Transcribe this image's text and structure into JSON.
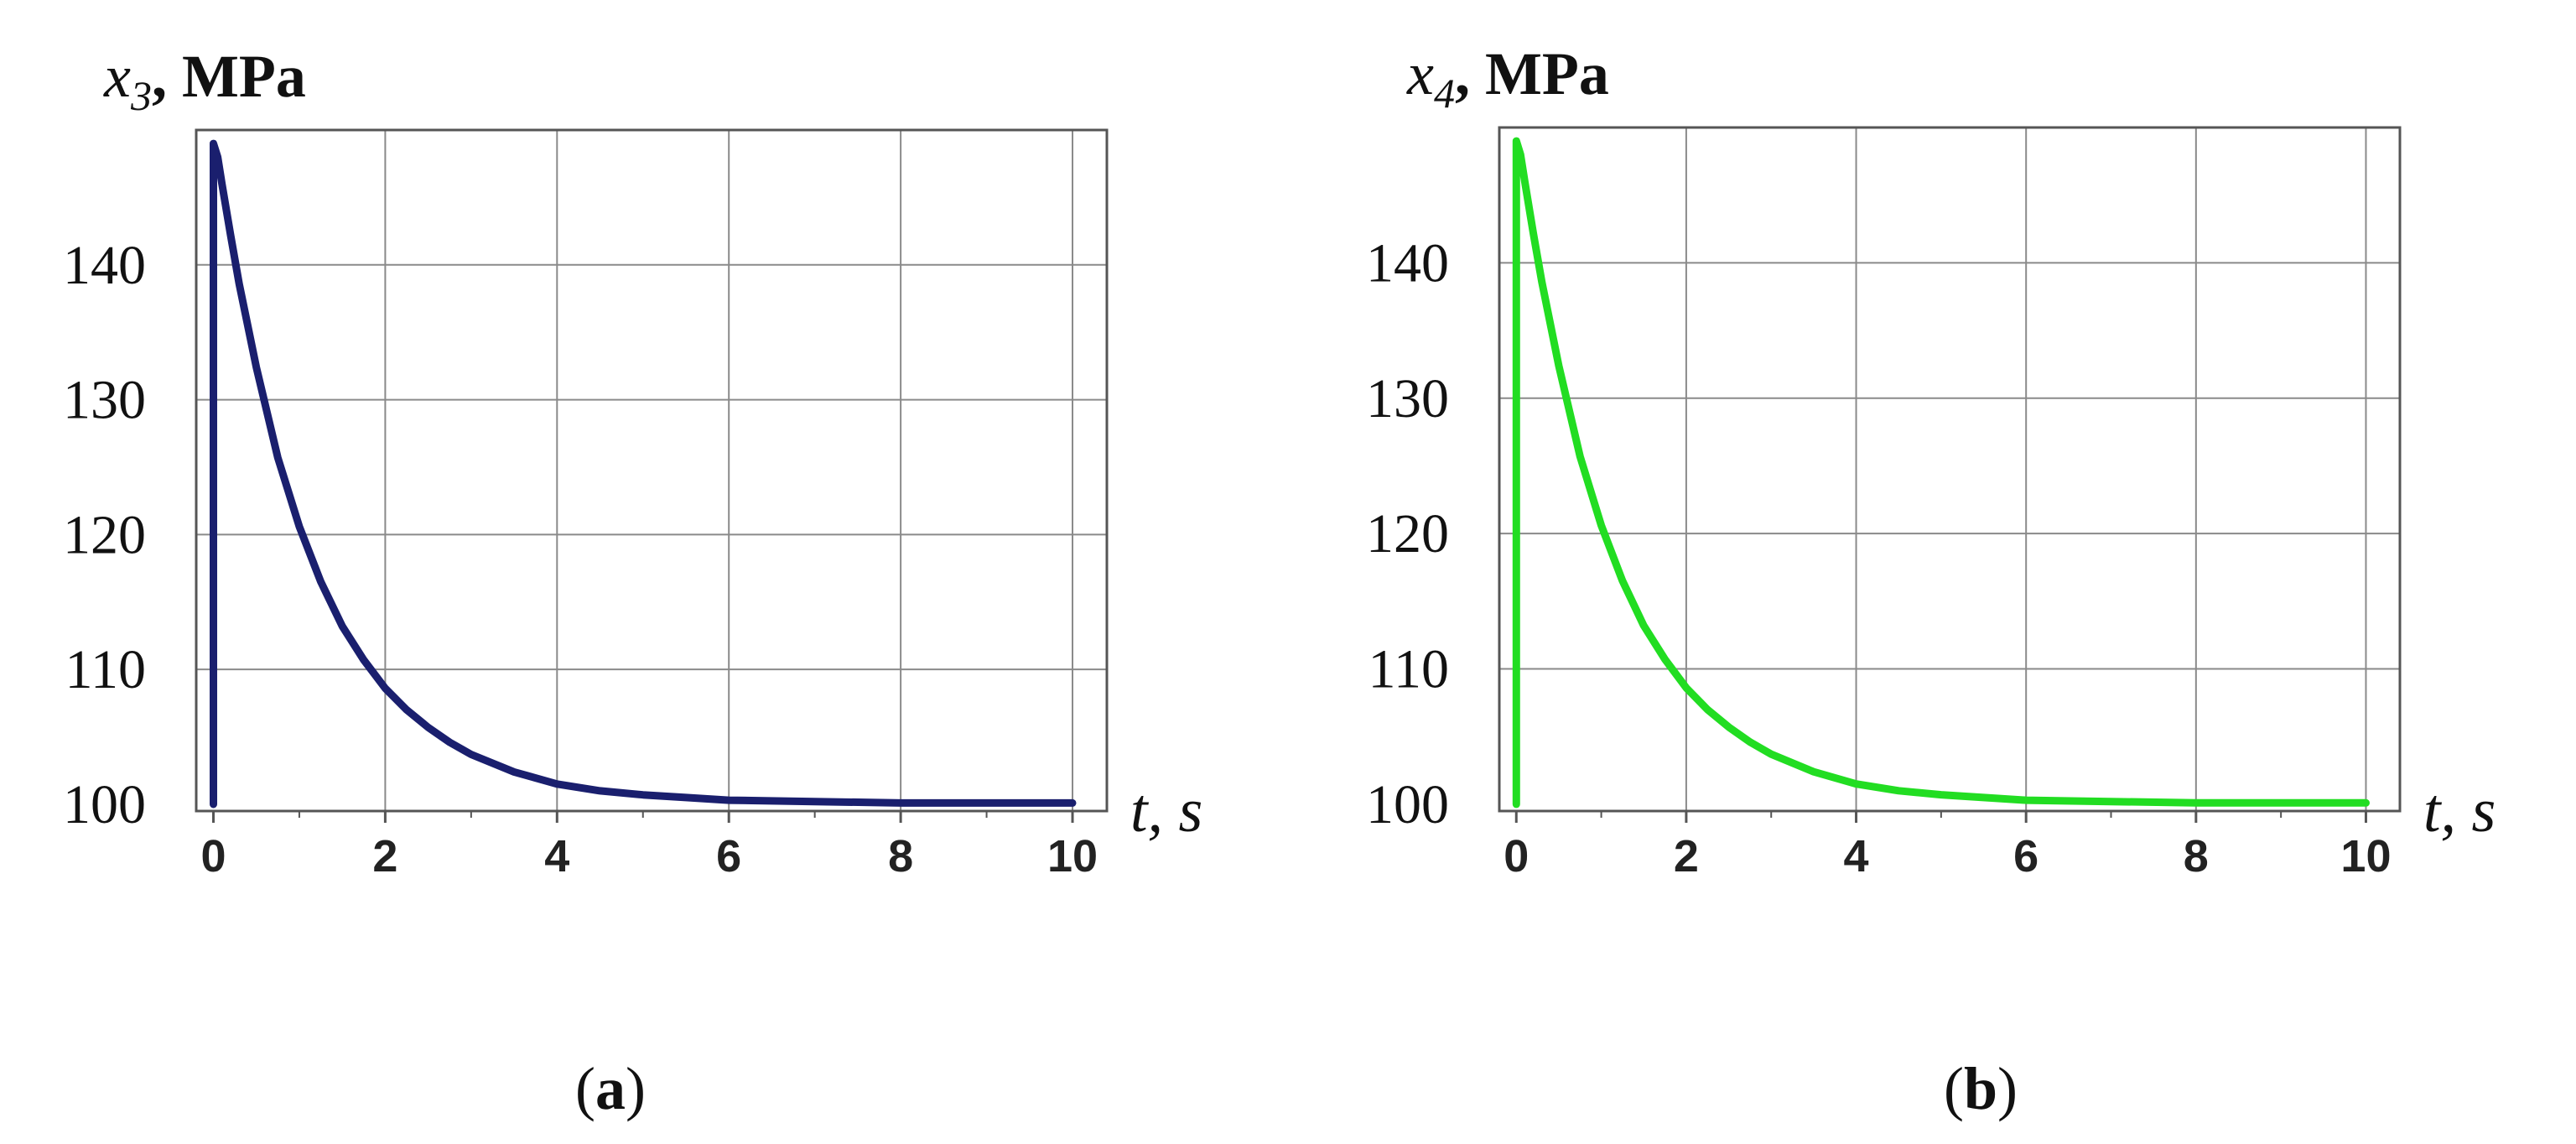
{
  "chart_data": [
    {
      "type": "line",
      "panel_label": "(a)",
      "ylabel_symbol": "x",
      "ylabel_subscript": "3",
      "ylabel_unit": ", MPa",
      "xlabel": "t,  s",
      "xlim": [
        -0.2,
        10.4
      ],
      "ylim": [
        99.5,
        150
      ],
      "xticks": [
        0,
        2,
        4,
        6,
        8,
        10
      ],
      "yticks": [
        100,
        110,
        120,
        130,
        140
      ],
      "grid": true,
      "color": "#1a1f6e",
      "series": [
        {
          "x": [
            0,
            0,
            0.05,
            0.1,
            0.2,
            0.3,
            0.5,
            0.75,
            1,
            1.25,
            1.5,
            1.75,
            2,
            2.25,
            2.5,
            2.75,
            3,
            3.5,
            4,
            4.5,
            5,
            5.5,
            6,
            7,
            8,
            9,
            10
          ],
          "y": [
            100,
            149,
            148,
            146,
            142.2,
            138.6,
            132.4,
            125.7,
            120.6,
            116.5,
            113.2,
            110.7,
            108.6,
            107,
            105.7,
            104.6,
            103.7,
            102.4,
            101.5,
            101,
            100.7,
            100.5,
            100.3,
            100.2,
            100.1,
            100.1,
            100.1
          ]
        }
      ]
    },
    {
      "type": "line",
      "panel_label": "(b)",
      "ylabel_symbol": "x",
      "ylabel_subscript": "4",
      "ylabel_unit": ", MPa",
      "xlabel": "t,  s",
      "xlim": [
        -0.2,
        10.4
      ],
      "ylim": [
        99.5,
        150
      ],
      "xticks": [
        0,
        2,
        4,
        6,
        8,
        10
      ],
      "yticks": [
        100,
        110,
        120,
        130,
        140
      ],
      "grid": true,
      "color": "#22dd22",
      "series": [
        {
          "x": [
            0,
            0,
            0.05,
            0.1,
            0.2,
            0.3,
            0.5,
            0.75,
            1,
            1.25,
            1.5,
            1.75,
            2,
            2.25,
            2.5,
            2.75,
            3,
            3.5,
            4,
            4.5,
            5,
            5.5,
            6,
            7,
            8,
            9,
            10
          ],
          "y": [
            100,
            149,
            148,
            146,
            142.2,
            138.6,
            132.4,
            125.7,
            120.6,
            116.5,
            113.2,
            110.7,
            108.6,
            107,
            105.7,
            104.6,
            103.7,
            102.4,
            101.5,
            101,
            100.7,
            100.5,
            100.3,
            100.2,
            100.1,
            100.1,
            100.1
          ]
        }
      ]
    }
  ]
}
